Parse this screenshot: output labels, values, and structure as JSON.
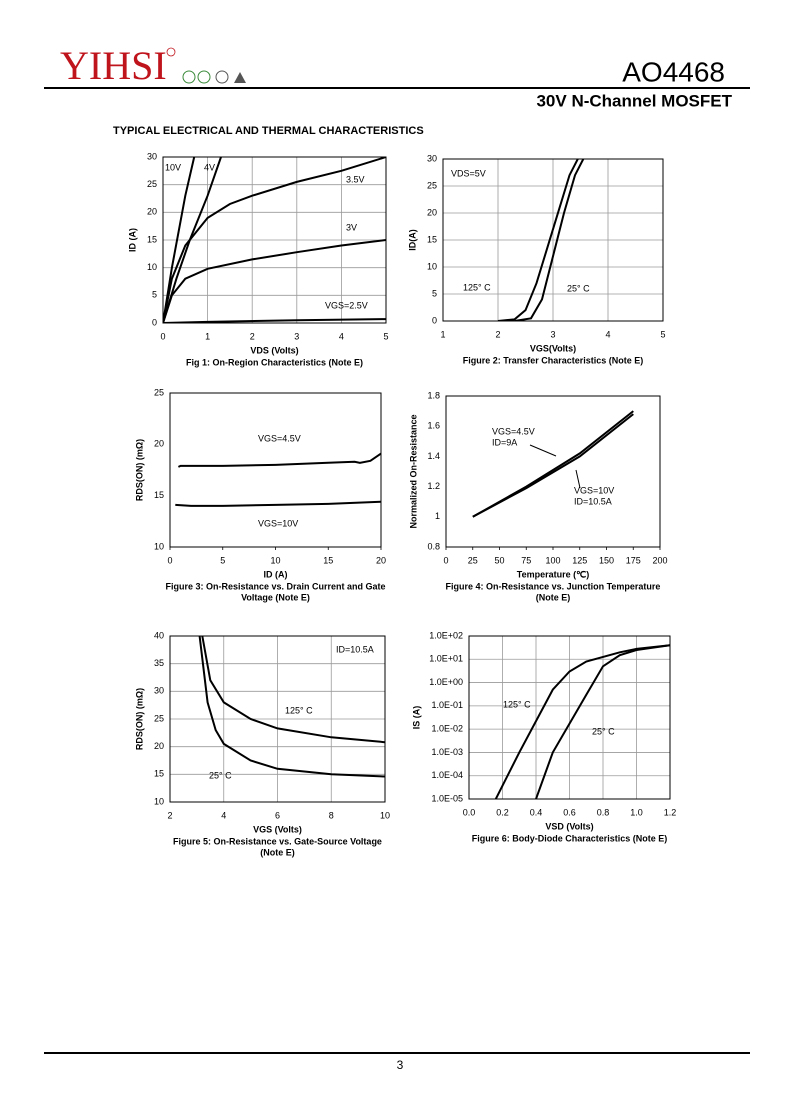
{
  "header": {
    "brand": "YIHSI",
    "part": "AO4468",
    "subtitle": "30V  N-Channel  MOSFET",
    "section": "TYPICAL ELECTRICAL AND THERMAL CHARACTERISTICS"
  },
  "footer": {
    "page": "3"
  },
  "chart_data": [
    {
      "type": "line",
      "title": [
        "Fig 1: On-Region Characteristics (Note E)"
      ],
      "x_label": "VDS (Volts)",
      "y_label": "ID (A)",
      "xlim": [
        0,
        5
      ],
      "ylim": [
        0,
        30
      ],
      "xticks": [
        0,
        1,
        2,
        3,
        4,
        5
      ],
      "yticks": [
        0,
        5,
        10,
        15,
        20,
        25,
        30
      ],
      "grid": true,
      "log_y": false,
      "series": [
        {
          "name": "10V",
          "color": "#000000",
          "x": [
            0,
            0.2,
            0.5,
            0.7
          ],
          "values": [
            0,
            10,
            23,
            30
          ]
        },
        {
          "name": "4V",
          "color": "#000000",
          "x": [
            0,
            0.3,
            0.6,
            1,
            1.3
          ],
          "values": [
            0,
            8,
            15,
            23,
            30
          ]
        },
        {
          "name": "3.5V",
          "color": "#000000",
          "x": [
            0,
            0.2,
            0.5,
            1,
            1.5,
            2,
            3,
            4,
            5
          ],
          "values": [
            0,
            8,
            14,
            19,
            21.5,
            23,
            25.5,
            27.5,
            30
          ]
        },
        {
          "name": "3V",
          "color": "#000000",
          "x": [
            0,
            0.2,
            0.5,
            1,
            2,
            3,
            4,
            5
          ],
          "values": [
            0,
            5,
            8,
            9.8,
            11.5,
            12.8,
            14,
            15
          ]
        },
        {
          "name": "VGS=2.5V",
          "color": "#000000",
          "x": [
            0,
            1,
            3,
            5
          ],
          "values": [
            0,
            0.2,
            0.5,
            0.7
          ]
        }
      ],
      "annotations": []
    },
    {
      "type": "line",
      "title": [
        "Figure 2: Transfer Characteristics (Note E)"
      ],
      "x_label": "VGS(Volts)",
      "y_label": "ID(A)",
      "xlim": [
        1,
        5
      ],
      "ylim": [
        0,
        30
      ],
      "xticks": [
        1,
        2,
        3,
        4,
        5
      ],
      "yticks": [
        0,
        5,
        10,
        15,
        20,
        25,
        30
      ],
      "grid": true,
      "log_y": false,
      "series": [
        {
          "name": "125° C",
          "color": "#000000",
          "x": [
            2,
            2.3,
            2.5,
            2.7,
            3,
            3.3,
            3.45
          ],
          "values": [
            0,
            0.3,
            2,
            7,
            17,
            27,
            30
          ]
        },
        {
          "name": "25° C",
          "color": "#000000",
          "x": [
            2.3,
            2.6,
            2.8,
            3,
            3.2,
            3.4,
            3.55
          ],
          "values": [
            0,
            0.5,
            4,
            12,
            20,
            27,
            30
          ]
        }
      ],
      "annotations": [
        "VDS=5V"
      ]
    },
    {
      "type": "line",
      "title": [
        "Figure 3: On-Resistance vs. Drain Current and Gate",
        "Voltage (Note E)"
      ],
      "x_label": "ID (A)",
      "y_label": "RDS(ON) (mΩ)",
      "xlim": [
        0,
        20
      ],
      "ylim": [
        10,
        25
      ],
      "xticks": [
        0,
        5,
        10,
        15,
        20
      ],
      "yticks": [
        10,
        15,
        20,
        25
      ],
      "grid": false,
      "log_y": false,
      "series": [
        {
          "name": "VGS=4.5V",
          "color": "#000000",
          "x": [
            0.8,
            1,
            5,
            10,
            15,
            17.5,
            18,
            19,
            20
          ],
          "values": [
            17.8,
            17.9,
            17.9,
            18,
            18.2,
            18.3,
            18.2,
            18.4,
            19.1
          ]
        },
        {
          "name": "VGS=10V",
          "color": "#000000",
          "x": [
            0.5,
            2,
            5,
            10,
            15,
            20
          ],
          "values": [
            14.1,
            14,
            14,
            14.1,
            14.2,
            14.4
          ]
        }
      ],
      "annotations": []
    },
    {
      "type": "line",
      "title": [
        "Figure 4: On-Resistance vs. Junction Temperature",
        "(Note E)"
      ],
      "x_label": "Temperature (℃)",
      "y_label": "Normalized On-Resistance",
      "xlim": [
        0,
        200
      ],
      "ylim": [
        0.8,
        1.8
      ],
      "xticks": [
        0,
        25,
        50,
        75,
        100,
        125,
        150,
        175,
        200
      ],
      "yticks": [
        0.8,
        1,
        1.2,
        1.4,
        1.6,
        1.8
      ],
      "grid": false,
      "log_y": false,
      "series": [
        {
          "color": "#000000",
          "x": [
            25,
            75,
            125,
            175
          ],
          "values": [
            1,
            1.2,
            1.42,
            1.7
          ]
        },
        {
          "color": "#000000",
          "x": [
            25,
            75,
            125,
            175
          ],
          "values": [
            1,
            1.19,
            1.4,
            1.68
          ]
        }
      ],
      "annotations": [
        "VGS=4.5V",
        "ID=9A",
        "VGS=10V",
        "ID=10.5A"
      ]
    },
    {
      "type": "line",
      "title": [
        "Figure 5: On-Resistance vs. Gate-Source Voltage",
        "(Note E)"
      ],
      "x_label": "VGS (Volts)",
      "y_label": "RDS(ON) (mΩ)",
      "xlim": [
        2,
        10
      ],
      "ylim": [
        10,
        40
      ],
      "xticks": [
        2,
        4,
        6,
        8,
        10
      ],
      "yticks": [
        10,
        15,
        20,
        25,
        30,
        35,
        40
      ],
      "grid": true,
      "log_y": false,
      "series": [
        {
          "name": "125° C",
          "color": "#000000",
          "x": [
            3.2,
            3.5,
            4,
            5,
            6,
            8,
            10
          ],
          "values": [
            40,
            32,
            28,
            25,
            23.3,
            21.7,
            20.8
          ]
        },
        {
          "name": "25° C",
          "color": "#000000",
          "x": [
            3.1,
            3.4,
            3.7,
            4,
            5,
            6,
            8,
            10
          ],
          "values": [
            40,
            28,
            23,
            20.5,
            17.5,
            16,
            15,
            14.6
          ]
        }
      ],
      "annotations": [
        "ID=10.5A"
      ]
    },
    {
      "type": "line",
      "title": [
        "Figure 6: Body-Diode Characteristics (Note E)"
      ],
      "x_label": "VSD (Volts)",
      "y_label": "IS (A)",
      "xlim": [
        0,
        1.2
      ],
      "ylim": [
        1e-05,
        100
      ],
      "xticks": [
        {
          "value": 0,
          "label": "0.0"
        },
        0.2,
        0.4,
        0.6,
        0.8,
        {
          "value": 1,
          "label": "1.0"
        },
        1.2
      ],
      "yticks": [
        {
          "value": 1e-05,
          "label": "1.0E-05"
        },
        {
          "value": 0.0001,
          "label": "1.0E-04"
        },
        {
          "value": 0.001,
          "label": "1.0E-03"
        },
        {
          "value": 0.01,
          "label": "1.0E-02"
        },
        {
          "value": 0.1,
          "label": "1.0E-01"
        },
        {
          "value": 1,
          "label": "1.0E+00"
        },
        {
          "value": 10,
          "label": "1.0E+01"
        },
        {
          "value": 100,
          "label": "1.0E+02"
        }
      ],
      "grid": true,
      "log_y": true,
      "series": [
        {
          "name": "125° C",
          "color": "#000000",
          "x": [
            0.16,
            0.3,
            0.5,
            0.6,
            0.7,
            0.9,
            1,
            1.2
          ],
          "values": [
            1e-05,
            0.001,
            0.5,
            3,
            8,
            20,
            28,
            40
          ]
        },
        {
          "name": "25° C",
          "color": "#000000",
          "x": [
            0.4,
            0.5,
            0.7,
            0.8,
            0.9,
            1,
            1.2
          ],
          "values": [
            1e-05,
            0.001,
            0.3,
            5,
            15,
            25,
            40
          ]
        }
      ],
      "annotations": []
    }
  ]
}
